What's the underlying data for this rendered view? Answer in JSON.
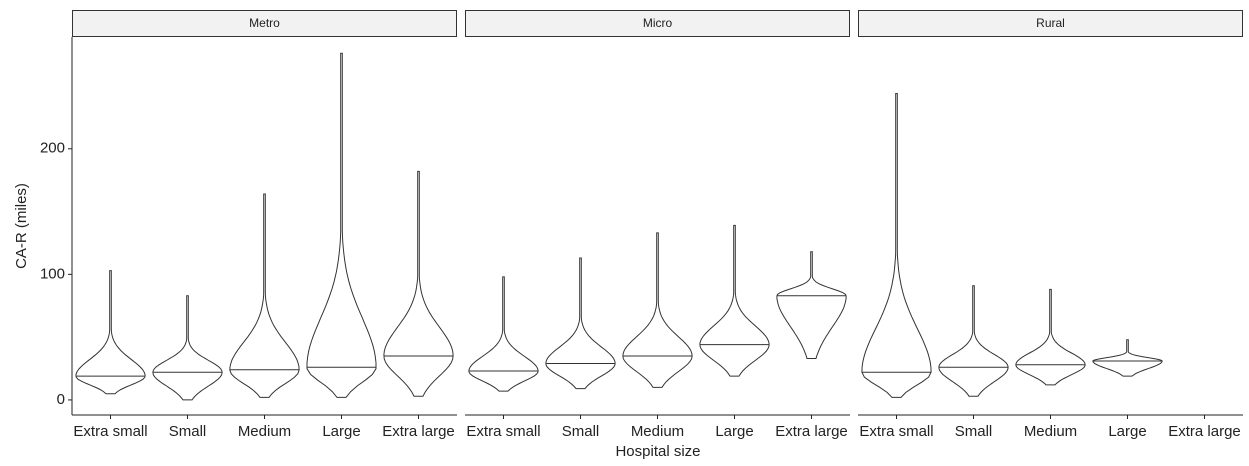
{
  "chart_data": {
    "type": "violin",
    "y_label": "CA-R (miles)",
    "x_label": "Hospital size",
    "ylim": [
      -12,
      289
    ],
    "yticks": [
      0,
      100,
      200
    ],
    "facets": [
      {
        "title": "Metro",
        "categories": [
          "Extra small",
          "Small",
          "Medium",
          "Large",
          "Extra large"
        ],
        "min": [
          5,
          0,
          2,
          2,
          3
        ],
        "median": [
          19,
          22,
          24,
          26,
          35
        ],
        "max": [
          103,
          83,
          164,
          276,
          182
        ]
      },
      {
        "title": "Micro",
        "categories": [
          "Extra small",
          "Small",
          "Medium",
          "Large",
          "Extra large"
        ],
        "min": [
          7,
          9,
          10,
          19,
          33
        ],
        "median": [
          23,
          29,
          35,
          44,
          83
        ],
        "max": [
          98,
          113,
          133,
          139,
          118
        ]
      },
      {
        "title": "Rural",
        "categories": [
          "Extra small",
          "Small",
          "Medium",
          "Large",
          "Extra large"
        ],
        "min": [
          2,
          3,
          12,
          19,
          null
        ],
        "median": [
          22,
          26,
          28,
          31,
          null
        ],
        "max": [
          244,
          91,
          88,
          48,
          null
        ]
      }
    ]
  }
}
